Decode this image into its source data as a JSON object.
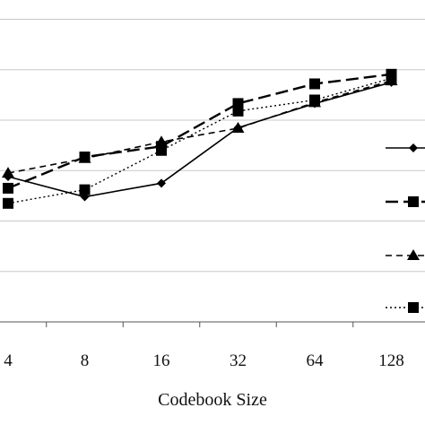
{
  "chart_data": {
    "type": "line",
    "xlabel": "Codebook Size",
    "ylabel": "",
    "categories": [
      "4",
      "8",
      "16",
      "32",
      "64",
      "128"
    ],
    "ylim": [
      0,
      6.4
    ],
    "grid": true,
    "legend_position": "right",
    "series": [
      {
        "style": "solid",
        "marker": "diamond",
        "color": "#000000",
        "values": [
          2.88,
          2.48,
          2.75,
          3.85,
          4.33,
          4.75
        ]
      },
      {
        "style": "long-dash",
        "marker": "square",
        "color": "#000000",
        "values": [
          2.65,
          3.27,
          3.48,
          4.33,
          4.72,
          4.91
        ]
      },
      {
        "style": "short-dash",
        "marker": "triangle",
        "color": "#000000",
        "values": [
          2.95,
          3.24,
          3.57,
          3.84,
          4.35,
          4.78
        ]
      },
      {
        "style": "dotted",
        "marker": "square",
        "color": "#000000",
        "values": [
          2.35,
          2.62,
          3.4,
          4.18,
          4.4,
          4.83
        ]
      }
    ]
  }
}
